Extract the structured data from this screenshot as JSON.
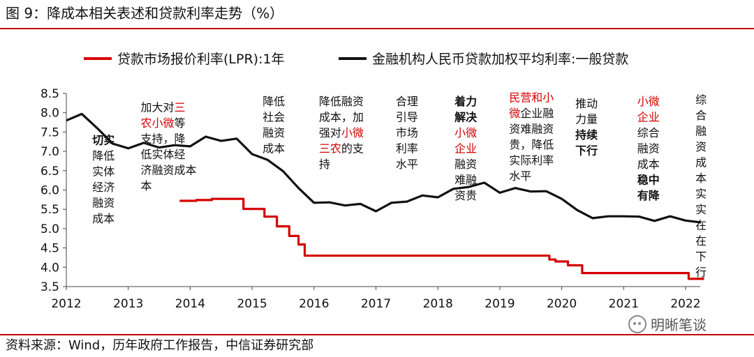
{
  "title": "图 9：降成本相关表述和贷款利率走势（%）",
  "source": "资料来源：Wind，历年政府工作报告，中信证券研究部",
  "watermark": "明晰笔谈",
  "watermark_icon": "wechat-icon",
  "chart_data": {
    "type": "line",
    "xlabel": "",
    "ylabel": "",
    "x_ticks": [
      "2012",
      "2013",
      "2014",
      "2015",
      "2016",
      "2017",
      "2018",
      "2019",
      "2020",
      "2021",
      "2022"
    ],
    "x_range": [
      2012.0,
      2022.3
    ],
    "ylim": [
      3.5,
      8.5
    ],
    "y_ticks": [
      "3.5",
      "4.0",
      "4.5",
      "5.0",
      "5.5",
      "6.0",
      "6.5",
      "7.0",
      "7.5",
      "8.0",
      "8.5"
    ],
    "legend_position": "top",
    "series": [
      {
        "name": "贷款市场报价利率(LPR):1年",
        "color": "#d40000",
        "step": true,
        "x": [
          2013.83,
          2014.1,
          2014.35,
          2014.85,
          2014.86,
          2015.15,
          2015.2,
          2015.4,
          2015.6,
          2015.75,
          2015.85,
          2019.7,
          2019.8,
          2019.9,
          2020.1,
          2020.25,
          2020.33,
          2022.0,
          2022.05,
          2022.3
        ],
        "values": [
          5.72,
          5.74,
          5.77,
          5.77,
          5.51,
          5.51,
          5.31,
          5.06,
          4.81,
          4.59,
          4.3,
          4.3,
          4.2,
          4.15,
          4.05,
          4.05,
          3.85,
          3.85,
          3.7,
          3.7
        ]
      },
      {
        "name": "金融机构人民币贷款加权平均利率:一般贷款",
        "color": "#111111",
        "step": false,
        "x": [
          2012.0,
          2012.25,
          2012.5,
          2012.75,
          2013.0,
          2013.25,
          2013.5,
          2013.75,
          2014.0,
          2014.25,
          2014.5,
          2014.75,
          2015.0,
          2015.25,
          2015.5,
          2015.75,
          2016.0,
          2016.25,
          2016.5,
          2016.75,
          2017.0,
          2017.25,
          2017.5,
          2017.75,
          2018.0,
          2018.25,
          2018.5,
          2018.75,
          2019.0,
          2019.25,
          2019.5,
          2019.75,
          2020.0,
          2020.25,
          2020.5,
          2020.75,
          2021.0,
          2021.25,
          2021.5,
          2021.75,
          2022.0,
          2022.25
        ],
        "values": [
          7.8,
          7.97,
          7.6,
          7.2,
          7.08,
          7.22,
          7.1,
          7.16,
          7.13,
          7.38,
          7.27,
          7.33,
          6.93,
          6.78,
          6.49,
          6.05,
          5.67,
          5.68,
          5.6,
          5.64,
          5.45,
          5.67,
          5.7,
          5.86,
          5.81,
          6.03,
          6.08,
          6.19,
          5.93,
          6.05,
          5.96,
          5.97,
          5.77,
          5.48,
          5.27,
          5.32,
          5.32,
          5.31,
          5.2,
          5.32,
          5.21,
          5.16
        ]
      }
    ],
    "annotations": [
      {
        "x": 2012.6,
        "align": "mid",
        "top": 7.3,
        "lines": [
          {
            "segs": [
              {
                "t": "切实",
                "c": "#111111",
                "b": true
              }
            ]
          },
          {
            "segs": [
              {
                "t": "降低",
                "c": "#111111",
                "b": false
              }
            ]
          },
          {
            "segs": [
              {
                "t": "实体",
                "c": "#111111",
                "b": false
              }
            ]
          },
          {
            "segs": [
              {
                "t": "经济",
                "c": "#111111",
                "b": false
              }
            ]
          },
          {
            "segs": [
              {
                "t": "融资",
                "c": "#111111",
                "b": false
              }
            ]
          },
          {
            "segs": [
              {
                "t": "成本",
                "c": "#111111",
                "b": false
              }
            ]
          }
        ]
      },
      {
        "x": 2013.2,
        "align": "start",
        "top": 8.15,
        "lines": [
          {
            "segs": [
              {
                "t": "加大对",
                "c": "#111111",
                "b": false
              },
              {
                "t": "三",
                "c": "#d40000",
                "b": false
              }
            ]
          },
          {
            "segs": [
              {
                "t": "农小微",
                "c": "#d40000",
                "b": false
              },
              {
                "t": "等",
                "c": "#111111",
                "b": false
              }
            ]
          },
          {
            "segs": [
              {
                "t": "支持，降",
                "c": "#111111",
                "b": false
              }
            ]
          },
          {
            "segs": [
              {
                "t": "低实体经",
                "c": "#111111",
                "b": false
              }
            ]
          },
          {
            "segs": [
              {
                "t": "济融资成本",
                "c": "#111111",
                "b": false
              }
            ]
          },
          {
            "segs": [
              {
                "t": "本",
                "c": "#111111",
                "b": false
              }
            ]
          }
        ]
      },
      {
        "x": 2015.35,
        "align": "mid",
        "top": 8.3,
        "lines": [
          {
            "segs": [
              {
                "t": "降低",
                "c": "#111111",
                "b": false
              }
            ]
          },
          {
            "segs": [
              {
                "t": "社会",
                "c": "#111111",
                "b": false
              }
            ]
          },
          {
            "segs": [
              {
                "t": "融资",
                "c": "#111111",
                "b": false
              }
            ]
          },
          {
            "segs": [
              {
                "t": "成本",
                "c": "#111111",
                "b": false
              }
            ]
          }
        ]
      },
      {
        "x": 2016.08,
        "align": "start",
        "top": 8.3,
        "lines": [
          {
            "segs": [
              {
                "t": "降低融资",
                "c": "#111111",
                "b": false
              }
            ]
          },
          {
            "segs": [
              {
                "t": "成本，加",
                "c": "#111111",
                "b": false
              }
            ]
          },
          {
            "segs": [
              {
                "t": "强对",
                "c": "#111111",
                "b": false
              },
              {
                "t": "小微",
                "c": "#d40000",
                "b": false
              }
            ]
          },
          {
            "segs": [
              {
                "t": "三农",
                "c": "#d40000",
                "b": false
              },
              {
                "t": "的支",
                "c": "#111111",
                "b": false
              }
            ]
          },
          {
            "segs": [
              {
                "t": "持",
                "c": "#111111",
                "b": false
              }
            ]
          }
        ]
      },
      {
        "x": 2017.5,
        "align": "mid",
        "top": 8.3,
        "lines": [
          {
            "segs": [
              {
                "t": "合理",
                "c": "#111111",
                "b": false
              }
            ]
          },
          {
            "segs": [
              {
                "t": "引导",
                "c": "#111111",
                "b": false
              }
            ]
          },
          {
            "segs": [
              {
                "t": "市场",
                "c": "#111111",
                "b": false
              }
            ]
          },
          {
            "segs": [
              {
                "t": "利率",
                "c": "#111111",
                "b": false
              }
            ]
          },
          {
            "segs": [
              {
                "t": "水平",
                "c": "#111111",
                "b": false
              }
            ]
          }
        ]
      },
      {
        "x": 2018.45,
        "align": "mid",
        "top": 8.3,
        "lines": [
          {
            "segs": [
              {
                "t": "着力",
                "c": "#111111",
                "b": true
              }
            ]
          },
          {
            "segs": [
              {
                "t": "解决",
                "c": "#111111",
                "b": true
              }
            ]
          },
          {
            "segs": [
              {
                "t": "小微",
                "c": "#d40000",
                "b": false
              }
            ]
          },
          {
            "segs": [
              {
                "t": "企业",
                "c": "#d40000",
                "b": false
              }
            ]
          },
          {
            "segs": [
              {
                "t": "融资",
                "c": "#111111",
                "b": false
              }
            ]
          },
          {
            "segs": [
              {
                "t": "难融",
                "c": "#111111",
                "b": false
              }
            ]
          },
          {
            "segs": [
              {
                "t": "资贵",
                "c": "#111111",
                "b": false
              }
            ]
          }
        ]
      },
      {
        "x": 2019.15,
        "align": "start",
        "top": 8.4,
        "lines": [
          {
            "segs": [
              {
                "t": "民营和小",
                "c": "#d40000",
                "b": false
              }
            ]
          },
          {
            "segs": [
              {
                "t": "微",
                "c": "#d40000",
                "b": false
              },
              {
                "t": "企业融",
                "c": "#111111",
                "b": false
              }
            ]
          },
          {
            "segs": [
              {
                "t": "资难融资",
                "c": "#111111",
                "b": false
              }
            ]
          },
          {
            "segs": [
              {
                "t": "贵，降低",
                "c": "#111111",
                "b": false
              }
            ]
          },
          {
            "segs": [
              {
                "t": "实际利率",
                "c": "#111111",
                "b": false
              }
            ]
          },
          {
            "segs": [
              {
                "t": "水平",
                "c": "#111111",
                "b": false
              }
            ]
          }
        ]
      },
      {
        "x": 2020.4,
        "align": "mid",
        "top": 8.25,
        "lines": [
          {
            "segs": [
              {
                "t": "推动",
                "c": "#111111",
                "b": false
              }
            ]
          },
          {
            "segs": [
              {
                "t": "力量",
                "c": "#111111",
                "b": false
              }
            ]
          },
          {
            "segs": [
              {
                "t": "持续",
                "c": "#111111",
                "b": true
              }
            ]
          },
          {
            "segs": [
              {
                "t": "下行",
                "c": "#111111",
                "b": true
              }
            ]
          }
        ]
      },
      {
        "x": 2021.4,
        "align": "mid",
        "top": 8.3,
        "lines": [
          {
            "segs": [
              {
                "t": "小微",
                "c": "#d40000",
                "b": false
              }
            ]
          },
          {
            "segs": [
              {
                "t": "企业",
                "c": "#d40000",
                "b": false
              }
            ]
          },
          {
            "segs": [
              {
                "t": "综合",
                "c": "#111111",
                "b": false
              }
            ]
          },
          {
            "segs": [
              {
                "t": "融资",
                "c": "#111111",
                "b": false
              }
            ]
          },
          {
            "segs": [
              {
                "t": "成本",
                "c": "#111111",
                "b": false
              }
            ]
          },
          {
            "segs": [
              {
                "t": "稳中",
                "c": "#111111",
                "b": true
              }
            ]
          },
          {
            "segs": [
              {
                "t": "有降",
                "c": "#111111",
                "b": true
              }
            ]
          }
        ]
      },
      {
        "x": 2022.25,
        "align": "mid",
        "top": 8.35,
        "lines": [
          {
            "segs": [
              {
                "t": "综",
                "c": "#111111",
                "b": false
              }
            ]
          },
          {
            "segs": [
              {
                "t": "合",
                "c": "#111111",
                "b": false
              }
            ]
          },
          {
            "segs": [
              {
                "t": "融",
                "c": "#111111",
                "b": false
              }
            ]
          },
          {
            "segs": [
              {
                "t": "资",
                "c": "#111111",
                "b": false
              }
            ]
          },
          {
            "segs": [
              {
                "t": "成",
                "c": "#111111",
                "b": false
              }
            ]
          },
          {
            "segs": [
              {
                "t": "本",
                "c": "#111111",
                "b": false
              }
            ]
          },
          {
            "segs": [
              {
                "t": "实",
                "c": "#111111",
                "b": false
              }
            ]
          },
          {
            "segs": [
              {
                "t": "实",
                "c": "#111111",
                "b": false
              }
            ]
          },
          {
            "segs": [
              {
                "t": "在",
                "c": "#111111",
                "b": false
              }
            ]
          },
          {
            "segs": [
              {
                "t": "在",
                "c": "#111111",
                "b": false
              }
            ]
          },
          {
            "segs": [
              {
                "t": "下",
                "c": "#111111",
                "b": false
              }
            ]
          },
          {
            "segs": [
              {
                "t": "行",
                "c": "#111111",
                "b": false
              }
            ]
          }
        ]
      }
    ]
  }
}
